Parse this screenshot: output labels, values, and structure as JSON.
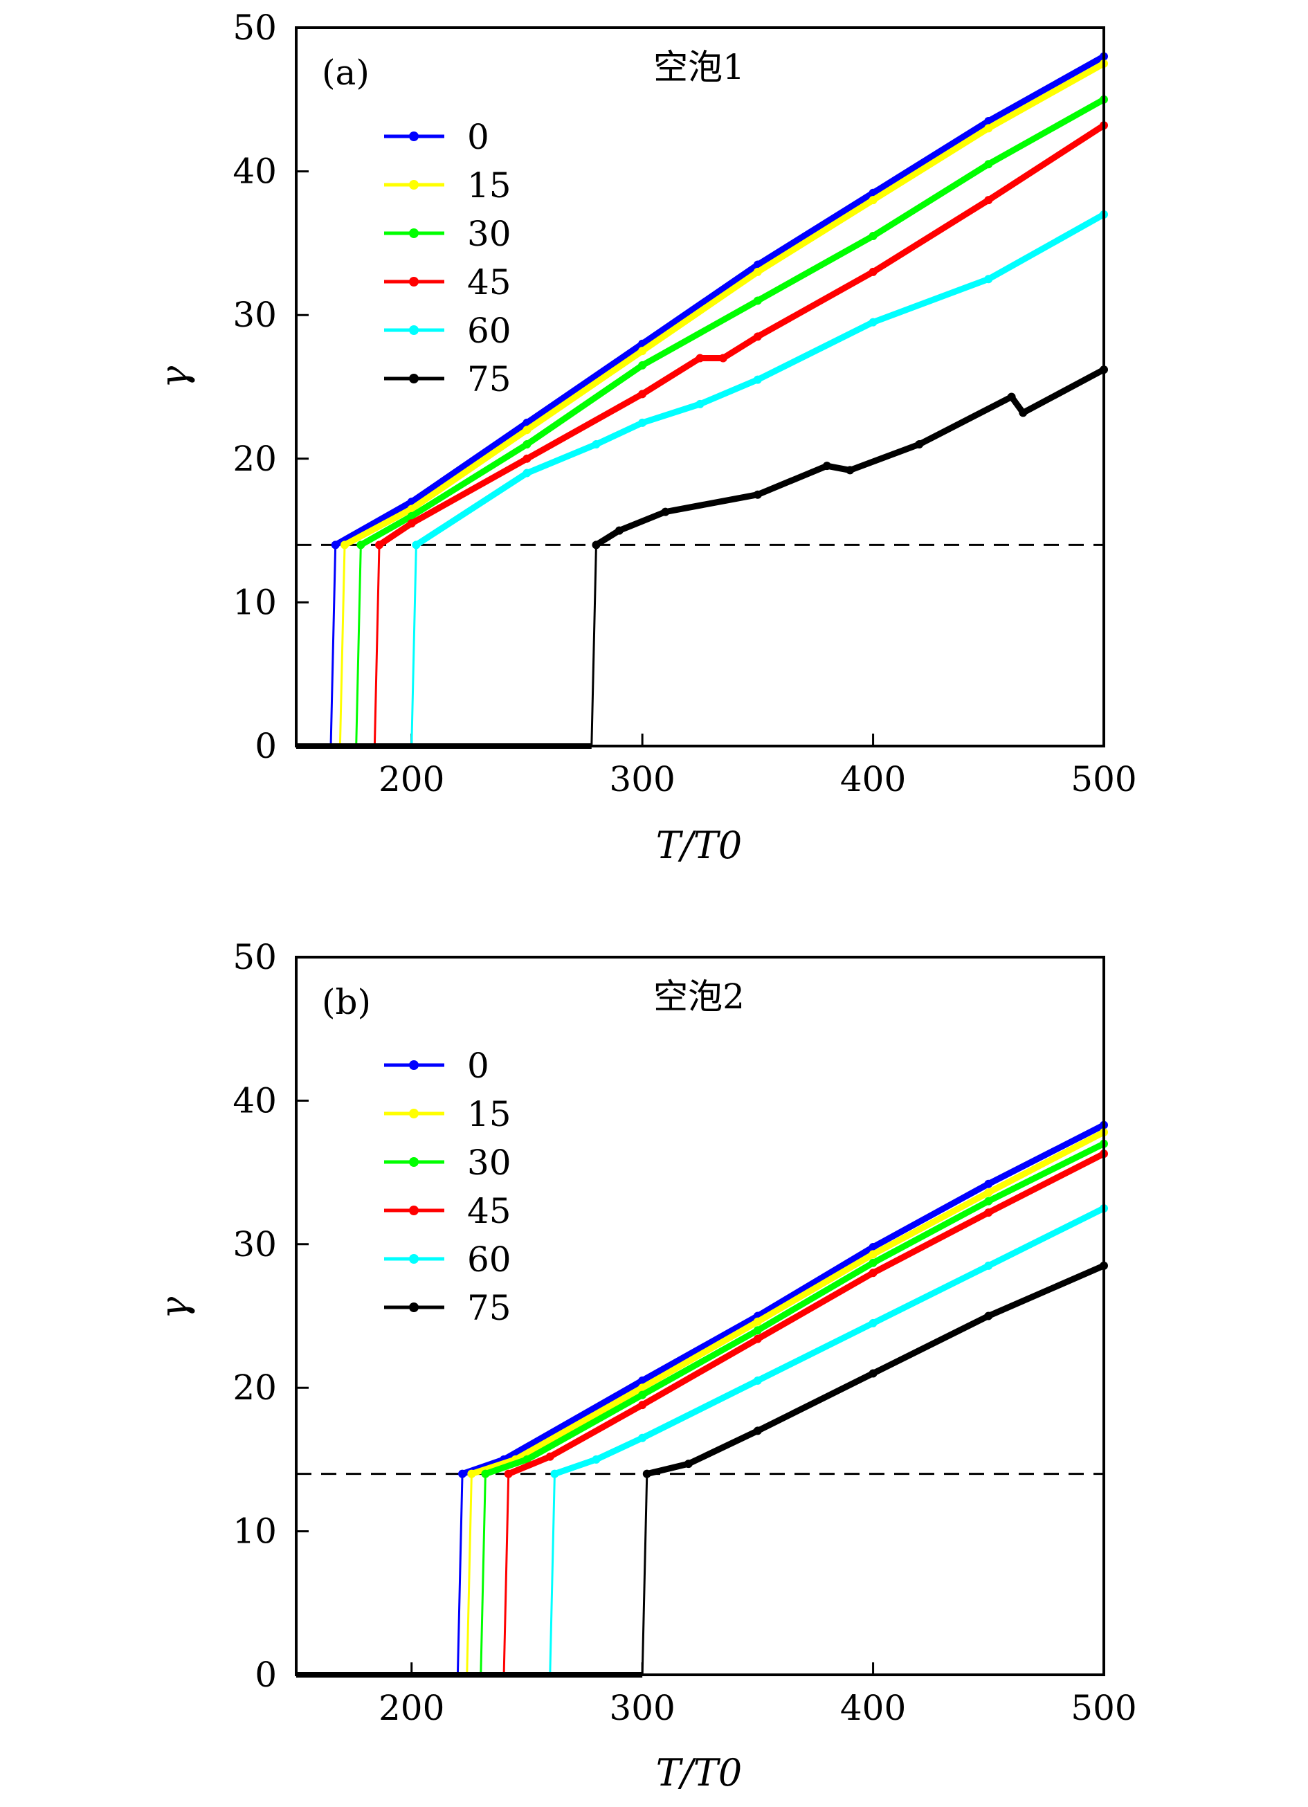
{
  "chart_data": [
    {
      "type": "line",
      "panel_label": "(a)",
      "title": "空泡1",
      "xlabel": "T/T0",
      "ylabel": "γ",
      "xlim": [
        150,
        500
      ],
      "ylim": [
        0,
        50
      ],
      "xticks": [
        200,
        300,
        400,
        500
      ],
      "yticks": [
        0,
        10,
        20,
        30,
        40,
        50
      ],
      "grid": false,
      "legend_position": "top-left",
      "threshold": {
        "y": 14,
        "style": "dashed",
        "color": "#000000"
      },
      "series": [
        {
          "name": "0",
          "color": "#0000ff",
          "onset": 167,
          "x": [
            167,
            200,
            250,
            300,
            350,
            400,
            450,
            500
          ],
          "y": [
            14,
            17,
            22.5,
            28,
            33.5,
            38.5,
            43.5,
            48
          ]
        },
        {
          "name": "15",
          "color": "#ffff00",
          "onset": 171,
          "x": [
            171,
            200,
            250,
            300,
            350,
            400,
            450,
            500
          ],
          "y": [
            14,
            16.5,
            22,
            27.5,
            33,
            38,
            43,
            47.5
          ]
        },
        {
          "name": "30",
          "color": "#00ff00",
          "onset": 178,
          "x": [
            178,
            200,
            250,
            300,
            350,
            400,
            450,
            500
          ],
          "y": [
            14,
            16,
            21,
            26.5,
            31,
            35.5,
            40.5,
            45
          ]
        },
        {
          "name": "45",
          "color": "#ff0000",
          "onset": 186,
          "x": [
            186,
            200,
            250,
            300,
            325,
            335,
            350,
            400,
            450,
            500
          ],
          "y": [
            14,
            15.5,
            20,
            24.5,
            27,
            27,
            28.5,
            33,
            38,
            43.2
          ]
        },
        {
          "name": "60",
          "color": "#00ffff",
          "onset": 202,
          "x": [
            202,
            250,
            280,
            300,
            325,
            350,
            400,
            450,
            500
          ],
          "y": [
            14,
            19,
            21,
            22.5,
            23.8,
            25.5,
            29.5,
            32.5,
            37
          ]
        },
        {
          "name": "75",
          "color": "#000000",
          "onset": 280,
          "x": [
            280,
            290,
            310,
            350,
            380,
            390,
            420,
            460,
            465,
            500
          ],
          "y": [
            14,
            15,
            16.3,
            17.5,
            19.5,
            19.2,
            21,
            24.3,
            23.2,
            26.2
          ]
        }
      ]
    },
    {
      "type": "line",
      "panel_label": "(b)",
      "title": "空泡2",
      "xlabel": "T/T0",
      "ylabel": "γ",
      "xlim": [
        150,
        500
      ],
      "ylim": [
        0,
        50
      ],
      "xticks": [
        200,
        300,
        400,
        500
      ],
      "yticks": [
        0,
        10,
        20,
        30,
        40,
        50
      ],
      "grid": false,
      "legend_position": "top-left",
      "threshold": {
        "y": 14,
        "style": "dashed",
        "color": "#000000"
      },
      "series": [
        {
          "name": "0",
          "color": "#0000ff",
          "onset": 222,
          "x": [
            222,
            240,
            300,
            350,
            400,
            450,
            500
          ],
          "y": [
            14,
            15,
            20.5,
            25,
            29.8,
            34.2,
            38.3
          ]
        },
        {
          "name": "15",
          "color": "#ffff00",
          "onset": 226,
          "x": [
            226,
            245,
            300,
            350,
            400,
            450,
            500
          ],
          "y": [
            14,
            15,
            20,
            24.6,
            29.3,
            33.6,
            37.8
          ]
        },
        {
          "name": "30",
          "color": "#00ff00",
          "onset": 232,
          "x": [
            232,
            250,
            300,
            350,
            400,
            450,
            500
          ],
          "y": [
            14,
            15,
            19.5,
            24,
            28.7,
            33,
            37
          ]
        },
        {
          "name": "45",
          "color": "#ff0000",
          "onset": 242,
          "x": [
            242,
            260,
            300,
            350,
            400,
            450,
            500
          ],
          "y": [
            14,
            15.2,
            18.8,
            23.4,
            28,
            32.2,
            36.3
          ]
        },
        {
          "name": "60",
          "color": "#00ffff",
          "onset": 262,
          "x": [
            262,
            280,
            300,
            350,
            400,
            450,
            500
          ],
          "y": [
            14,
            15,
            16.5,
            20.5,
            24.5,
            28.5,
            32.5
          ]
        },
        {
          "name": "75",
          "color": "#000000",
          "onset": 302,
          "x": [
            302,
            320,
            350,
            400,
            450,
            500
          ],
          "y": [
            14,
            14.7,
            17,
            21,
            25,
            28.5
          ]
        }
      ]
    }
  ]
}
